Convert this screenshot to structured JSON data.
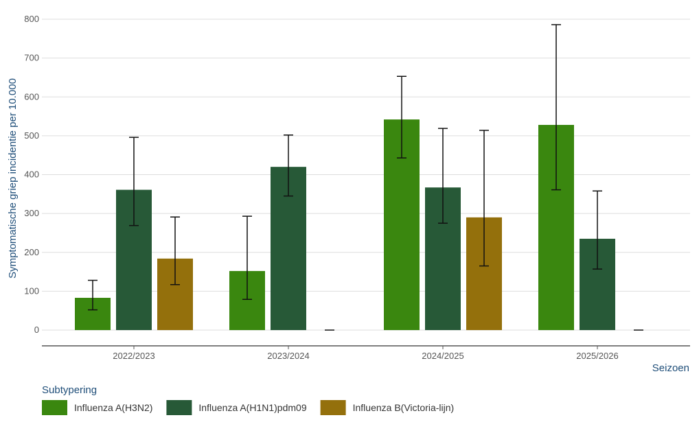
{
  "chart_data": {
    "type": "bar",
    "ylabel": "Symptomatische griep incidentie per 10.000",
    "xlabel": "Seizoen",
    "categories": [
      "2022/2023",
      "2023/2024",
      "2024/2025",
      "2025/2026"
    ],
    "ylim": [
      0,
      800
    ],
    "yticks": [
      0,
      100,
      200,
      300,
      400,
      500,
      600,
      700,
      800
    ],
    "grid": true,
    "legend_position": "bottom-left",
    "legend_title": "Subtypering",
    "series": [
      {
        "name": "Influenza A(H3N2)",
        "color": "#3a870f",
        "values": [
          83,
          152,
          542,
          528
        ],
        "error_low": [
          52,
          79,
          443,
          361
        ],
        "error_high": [
          128,
          293,
          653,
          786
        ]
      },
      {
        "name": "Influenza A(H1N1)pdm09",
        "color": "#275937",
        "values": [
          361,
          420,
          367,
          235
        ],
        "error_low": [
          269,
          345,
          275,
          157
        ],
        "error_high": [
          496,
          502,
          519,
          358
        ]
      },
      {
        "name": "Influenza B(Victoria-lijn)",
        "color": "#94700c",
        "values": [
          184,
          0,
          290,
          0
        ],
        "error_low": [
          117,
          0,
          165,
          0
        ],
        "error_high": [
          291,
          0,
          514,
          0
        ]
      }
    ]
  }
}
